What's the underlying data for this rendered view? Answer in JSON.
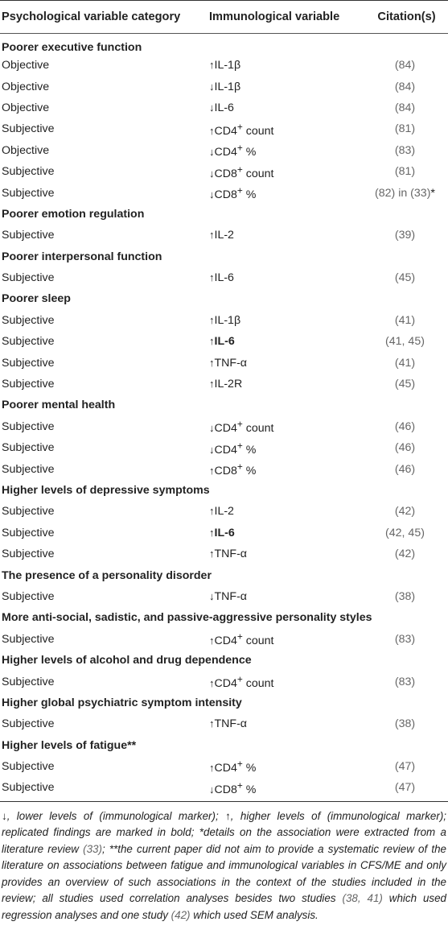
{
  "header": {
    "col1": "Psychological variable category",
    "col2": "Immunological variable",
    "col3": "Citation(s)"
  },
  "groups": [
    {
      "title": "Poorer executive function",
      "rows": [
        {
          "type": "Objective",
          "arrow": "↑",
          "var": "IL-1β",
          "sup": "",
          "suffix": "",
          "bold": false,
          "cit": "(84)",
          "cit_tail": ""
        },
        {
          "type": "Objective",
          "arrow": "↓",
          "var": "IL-1β",
          "sup": "",
          "suffix": "",
          "bold": false,
          "cit": "(84)",
          "cit_tail": ""
        },
        {
          "type": "Objective",
          "arrow": "↓",
          "var": "IL-6",
          "sup": "",
          "suffix": "",
          "bold": false,
          "cit": "(84)",
          "cit_tail": ""
        },
        {
          "type": "Subjective",
          "arrow": "↑",
          "var": "CD4",
          "sup": "+",
          "suffix": " count",
          "bold": false,
          "cit": "(81)",
          "cit_tail": ""
        },
        {
          "type": "Objective",
          "arrow": "↓",
          "var": "CD4",
          "sup": "+",
          "suffix": " %",
          "bold": false,
          "cit": "(83)",
          "cit_tail": ""
        },
        {
          "type": "Subjective",
          "arrow": "↓",
          "var": "CD8",
          "sup": "+",
          "suffix": " count",
          "bold": false,
          "cit": "(81)",
          "cit_tail": ""
        },
        {
          "type": "Subjective",
          "arrow": "↓",
          "var": "CD8",
          "sup": "+",
          "suffix": " %",
          "bold": false,
          "cit": "(82) in (33)",
          "cit_tail": "*"
        }
      ]
    },
    {
      "title": "Poorer emotion regulation",
      "rows": [
        {
          "type": "Subjective",
          "arrow": "↑",
          "var": "IL-2",
          "sup": "",
          "suffix": "",
          "bold": false,
          "cit": "(39)",
          "cit_tail": ""
        }
      ]
    },
    {
      "title": "Poorer interpersonal function",
      "rows": [
        {
          "type": "Subjective",
          "arrow": "↑",
          "var": "IL-6",
          "sup": "",
          "suffix": "",
          "bold": false,
          "cit": "(45)",
          "cit_tail": ""
        }
      ]
    },
    {
      "title": "Poorer sleep",
      "rows": [
        {
          "type": "Subjective",
          "arrow": "↑",
          "var": "IL-1β",
          "sup": "",
          "suffix": "",
          "bold": false,
          "cit": "(41)",
          "cit_tail": ""
        },
        {
          "type": "Subjective",
          "arrow": "↑",
          "var": "IL-6",
          "sup": "",
          "suffix": "",
          "bold": true,
          "cit": "(41, 45)",
          "cit_tail": ""
        },
        {
          "type": "Subjective",
          "arrow": "↑",
          "var": "TNF-α",
          "sup": "",
          "suffix": "",
          "bold": false,
          "cit": "(41)",
          "cit_tail": ""
        },
        {
          "type": "Subjective",
          "arrow": "↑",
          "var": "IL-2R",
          "sup": "",
          "suffix": "",
          "bold": false,
          "cit": "(45)",
          "cit_tail": ""
        }
      ]
    },
    {
      "title": "Poorer mental health",
      "rows": [
        {
          "type": "Subjective",
          "arrow": "↓",
          "var": "CD4",
          "sup": "+",
          "suffix": " count",
          "bold": false,
          "cit": "(46)",
          "cit_tail": ""
        },
        {
          "type": "Subjective",
          "arrow": "↓",
          "var": "CD4",
          "sup": "+",
          "suffix": " %",
          "bold": false,
          "cit": "(46)",
          "cit_tail": ""
        },
        {
          "type": "Subjective",
          "arrow": "↑",
          "var": "CD8",
          "sup": "+",
          "suffix": " %",
          "bold": false,
          "cit": "(46)",
          "cit_tail": ""
        }
      ]
    },
    {
      "title": "Higher levels of depressive symptoms",
      "rows": [
        {
          "type": "Subjective",
          "arrow": "↑",
          "var": "IL-2",
          "sup": "",
          "suffix": "",
          "bold": false,
          "cit": "(42)",
          "cit_tail": ""
        },
        {
          "type": "Subjective",
          "arrow": "↑",
          "var": "IL-6",
          "sup": "",
          "suffix": "",
          "bold": true,
          "cit": "(42, 45)",
          "cit_tail": ""
        },
        {
          "type": "Subjective",
          "arrow": "↑",
          "var": "TNF-α",
          "sup": "",
          "suffix": "",
          "bold": false,
          "cit": "(42)",
          "cit_tail": ""
        }
      ]
    },
    {
      "title": "The presence of a personality disorder",
      "rows": [
        {
          "type": "Subjective",
          "arrow": "↓",
          "var": "TNF-α",
          "sup": "",
          "suffix": "",
          "bold": false,
          "cit": "(38)",
          "cit_tail": ""
        }
      ]
    },
    {
      "title": "More anti-social, sadistic, and passive-aggressive personality styles",
      "rows": [
        {
          "type": "Subjective",
          "arrow": "↑",
          "var": "CD4",
          "sup": "+",
          "suffix": " count",
          "bold": false,
          "cit": "(83)",
          "cit_tail": ""
        }
      ]
    },
    {
      "title": "Higher levels of alcohol and drug dependence",
      "rows": [
        {
          "type": "Subjective",
          "arrow": "↑",
          "var": "CD4",
          "sup": "+",
          "suffix": " count",
          "bold": false,
          "cit": "(83)",
          "cit_tail": ""
        }
      ]
    },
    {
      "title": "Higher global psychiatric symptom intensity",
      "rows": [
        {
          "type": "Subjective",
          "arrow": "↑",
          "var": "TNF-α",
          "sup": "",
          "suffix": "",
          "bold": false,
          "cit": "(38)",
          "cit_tail": ""
        }
      ]
    },
    {
      "title": "Higher levels of fatigue**",
      "rows": [
        {
          "type": "Subjective",
          "arrow": "↑",
          "var": "CD4",
          "sup": "+",
          "suffix": " %",
          "bold": false,
          "cit": "(47)",
          "cit_tail": ""
        },
        {
          "type": "Subjective",
          "arrow": "↓",
          "var": "CD8",
          "sup": "+",
          "suffix": " %",
          "bold": false,
          "cit": "(47)",
          "cit_tail": ""
        }
      ]
    }
  ],
  "footnote": [
    {
      "t": "↓, lower levels of (immunological marker); ↑, higher levels of (immunological marker); replicated findings are marked in bold; *details on the association were extracted from a literature review ",
      "ref": false
    },
    {
      "t": "(33)",
      "ref": true
    },
    {
      "t": "; **the current paper did not aim to provide a systematic review of the literature on associations between fatigue and immunological variables in CFS/ME and only provides an overview of such associations in the context of the studies included in the review; all studies used correlation analyses besides two studies ",
      "ref": false
    },
    {
      "t": "(38, 41)",
      "ref": true
    },
    {
      "t": " which used regression analyses and one study ",
      "ref": false
    },
    {
      "t": "(42)",
      "ref": true
    },
    {
      "t": " which used SEM analysis.",
      "ref": false
    }
  ]
}
